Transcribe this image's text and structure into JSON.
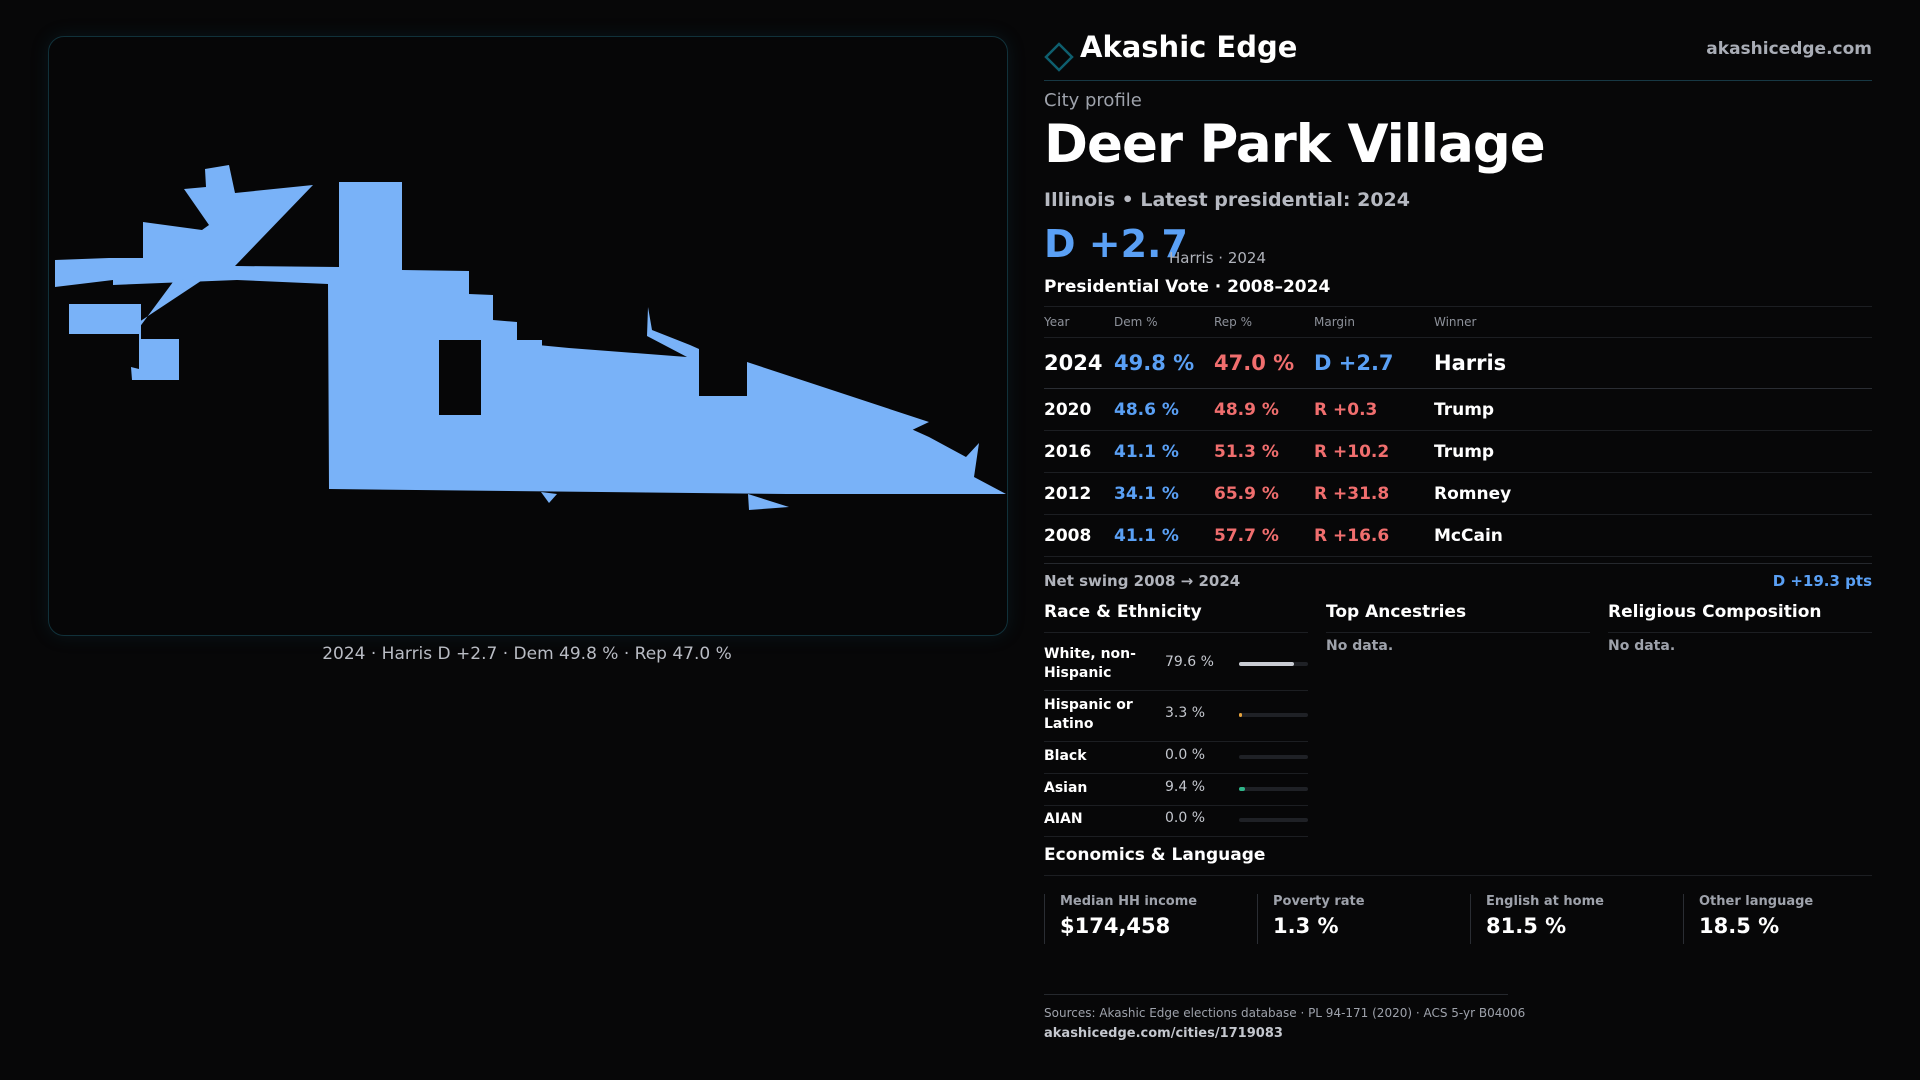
{
  "brand": {
    "name": "Akashic Edge",
    "site": "akashicedge.com",
    "accent": "#0e5e6e"
  },
  "map": {
    "caption": "2024 · Harris D +2.7 · Dem 49.8 % · Rep 47.0 %",
    "fill_color": "#79b2f8"
  },
  "profile": {
    "eyebrow": "City profile",
    "city": "Deer Park Village",
    "subline": "Illinois • Latest presidential: 2024",
    "margin": "D +2.7",
    "margin_note": "Harris · 2024"
  },
  "vote": {
    "title": "Presidential Vote · 2008–2024",
    "headers": {
      "year": "Year",
      "dem": "Dem %",
      "rep": "Rep %",
      "margin": "Margin",
      "winner": "Winner"
    },
    "rows": [
      {
        "year": "2024",
        "dem": "49.8 %",
        "rep": "47.0 %",
        "margin": "D +2.7",
        "winner": "Harris",
        "party": "D"
      },
      {
        "year": "2020",
        "dem": "48.6 %",
        "rep": "48.9 %",
        "margin": "R +0.3",
        "winner": "Trump",
        "party": "R"
      },
      {
        "year": "2016",
        "dem": "41.1 %",
        "rep": "51.3 %",
        "margin": "R +10.2",
        "winner": "Trump",
        "party": "R"
      },
      {
        "year": "2012",
        "dem": "34.1 %",
        "rep": "65.9 %",
        "margin": "R +31.8",
        "winner": "Romney",
        "party": "R"
      },
      {
        "year": "2008",
        "dem": "41.1 %",
        "rep": "57.7 %",
        "margin": "R +16.6",
        "winner": "McCain",
        "party": "R"
      }
    ],
    "swing_label": "Net swing 2008 → 2024",
    "swing_value": "D +19.3 pts"
  },
  "race": {
    "title": "Race & Ethnicity",
    "rows": [
      {
        "label": "White, non-Hispanic",
        "pct": "79.6 %",
        "fraction": 0.796,
        "color": "#c9ccd3"
      },
      {
        "label": "Hispanic or Latino",
        "pct": "3.3 %",
        "fraction": 0.033,
        "color": "#e6a23c"
      },
      {
        "label": "Black",
        "pct": "0.0 %",
        "fraction": 0.0,
        "color": "#8fa8d8"
      },
      {
        "label": "Asian",
        "pct": "9.4 %",
        "fraction": 0.094,
        "color": "#2fb589"
      },
      {
        "label": "AIAN",
        "pct": "0.0 %",
        "fraction": 0.0,
        "color": "#c97bd6"
      }
    ]
  },
  "ancestries": {
    "title": "Top Ancestries",
    "empty": "No data."
  },
  "religion": {
    "title": "Religious Composition",
    "empty": "No data."
  },
  "economics": {
    "title": "Economics & Language",
    "cards": [
      {
        "label": "Median HH income",
        "value": "$174,458"
      },
      {
        "label": "Poverty rate",
        "value": "1.3 %"
      },
      {
        "label": "English at home",
        "value": "81.5 %"
      },
      {
        "label": "Other language",
        "value": "18.5 %"
      }
    ]
  },
  "footer": {
    "sources": "Sources: Akashic Edge elections database · PL 94-171 (2020) · ACS 5-yr B04006",
    "url": "akashicedge.com/cities/1719083"
  }
}
